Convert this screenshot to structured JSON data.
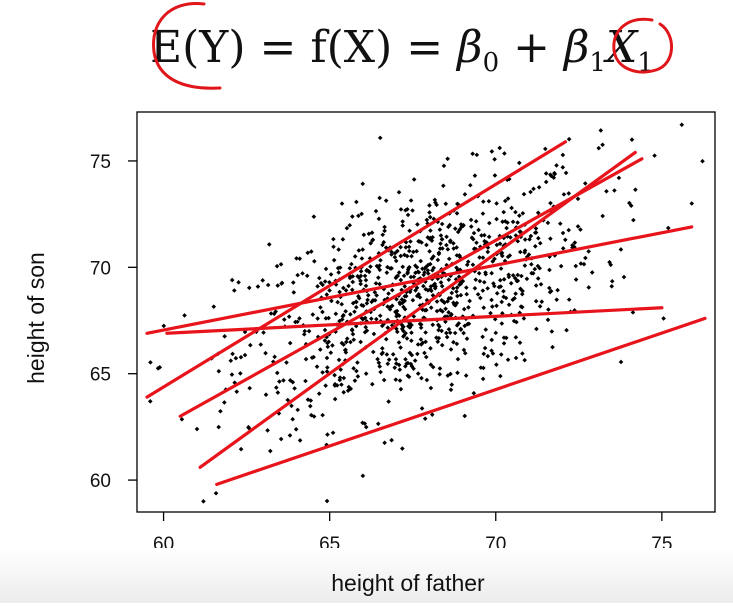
{
  "formula": {
    "expression": "E(Y) = f(X) = β0 + β1X1",
    "parts": [
      "E(Y) = f(X) = ",
      "β",
      "0",
      " + ",
      "β",
      "1",
      "X",
      "1"
    ],
    "annotation_color": "#e0161b"
  },
  "chart_data": {
    "type": "scatter",
    "xlabel": "height of father",
    "ylabel": "height of son",
    "xlim": [
      59.2,
      76.6
    ],
    "ylim": [
      58.5,
      77.3
    ],
    "xticks": [
      60,
      65,
      70,
      75
    ],
    "yticks": [
      60,
      65,
      70,
      75
    ],
    "grid": false,
    "legend": "none",
    "point_color": "#000000",
    "line_color": "#e8141b",
    "scatter_summary": {
      "n_points_approx": 1000,
      "x_mean": 67.7,
      "y_mean": 68.7,
      "x_sd": 2.7,
      "y_sd": 2.8,
      "slope": 0.51,
      "extreme_points": [
        [
          61.2,
          59.0
        ],
        [
          66.0,
          60.2
        ],
        [
          59.6,
          63.7
        ],
        [
          75.6,
          76.7
        ],
        [
          75.9,
          73.0
        ],
        [
          74.1,
          76.0
        ],
        [
          73.1,
          75.6
        ]
      ]
    },
    "lines": [
      {
        "x": [
          61.1,
          74.2
        ],
        "y": [
          60.6,
          75.4
        ]
      },
      {
        "x": [
          61.6,
          76.3
        ],
        "y": [
          59.8,
          67.6
        ]
      },
      {
        "x": [
          59.5,
          75.9
        ],
        "y": [
          66.9,
          71.9
        ]
      },
      {
        "x": [
          60.1,
          75.0
        ],
        "y": [
          66.9,
          68.1
        ]
      },
      {
        "x": [
          59.5,
          72.1
        ],
        "y": [
          63.9,
          75.9
        ]
      },
      {
        "x": [
          60.5,
          74.4
        ],
        "y": [
          63.0,
          75.1
        ]
      }
    ]
  }
}
